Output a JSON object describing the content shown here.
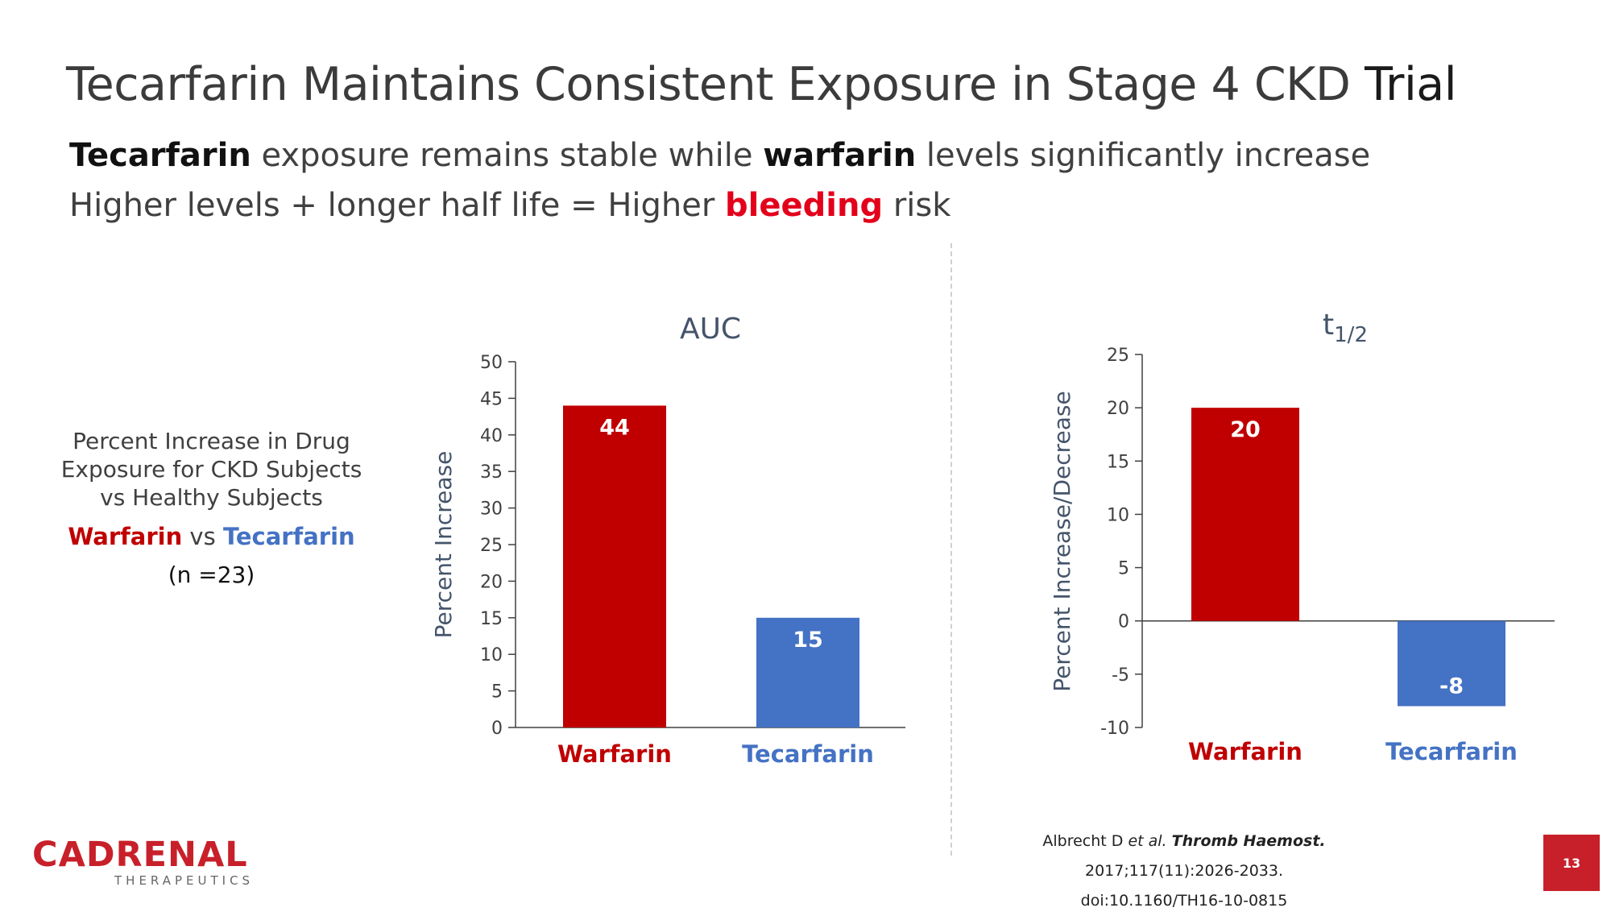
{
  "slide": {
    "title_main": "Tecarfarin Maintains Consistent Exposure in Stage 4 CKD ",
    "title_last": "Trial",
    "subtitle1": {
      "bold1": "Tecarfarin",
      "text1": " exposure remains stable while ",
      "bold2": "warfarin",
      "text2": " levels significantly increase"
    },
    "subtitle2": {
      "text1": "Higher levels + longer half life = Higher ",
      "red": "bleeding",
      "text2": " risk"
    },
    "left_box": {
      "description": "Percent Increase in Drug Exposure for CKD Subjects vs Healthy Subjects",
      "warfarin": "Warfarin",
      "vs": " vs ",
      "tecarfarin": "Tecarfarin",
      "n": "(n =23)"
    },
    "citation": {
      "author": "Albrecht D ",
      "etal": "et al.",
      "journal": "Thromb Haemost.",
      "ref": " 2017;117(11):2026-2033.",
      "doi": "doi:10.1160/TH16-10-0815"
    },
    "logo": {
      "pre": "C",
      "accent": "A",
      "rest": "DRENAL",
      "sub": "THERAPEUTICS"
    },
    "page_number": "13"
  },
  "colors": {
    "warfarin": "#c00000",
    "tecarfarin": "#4472c4",
    "axis_title": "#44546a",
    "brand": "#c8202a"
  },
  "chart_data": [
    {
      "type": "bar",
      "title": "AUC",
      "categories": [
        "Warfarin",
        "Tecarfarin"
      ],
      "values": [
        44,
        15
      ],
      "ylabel": "Percent Increase",
      "ylim": [
        0,
        50
      ],
      "yticks": [
        0,
        5,
        10,
        15,
        20,
        25,
        30,
        35,
        40,
        45,
        50
      ]
    },
    {
      "type": "bar",
      "title_base": "t",
      "title_sub": "1/2",
      "categories": [
        "Warfarin",
        "Tecarfarin"
      ],
      "values": [
        20,
        -8
      ],
      "ylabel": "Percent Increase/Decrease",
      "ylim": [
        -10,
        25
      ],
      "yticks": [
        -10,
        -5,
        0,
        5,
        10,
        15,
        20,
        25
      ]
    }
  ]
}
